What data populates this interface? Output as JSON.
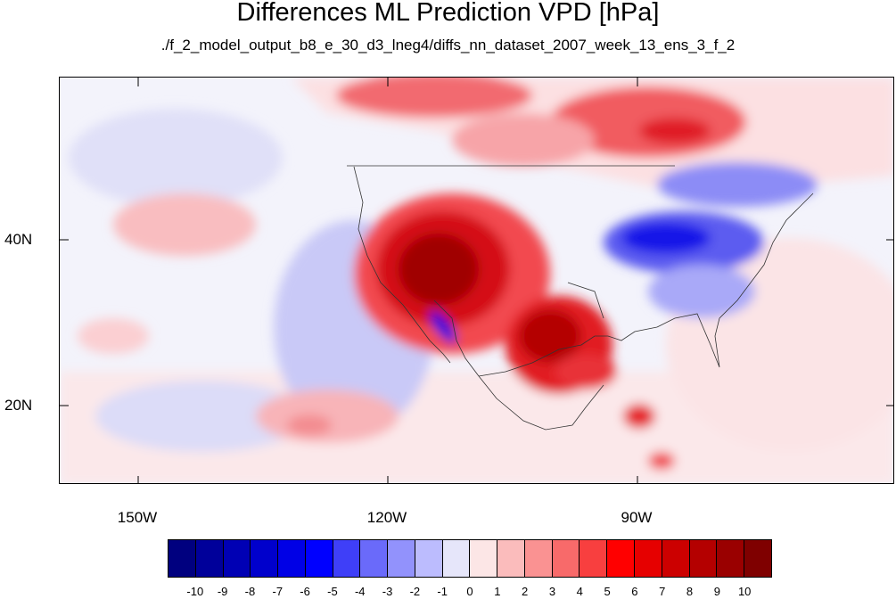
{
  "title": "Differences ML Prediction VPD [hPa]",
  "subtitle": "./f_2_model_output_b8_e_30_d3_lneg4/diffs_nn_dataset_2007_week_13_ens_3_f_2",
  "map": {
    "lat_labels": [
      "40N",
      "20N"
    ],
    "lon_labels": [
      "150W",
      "120W",
      "90W"
    ],
    "extent": {
      "lon_min": -160,
      "lon_max": -60,
      "lat_min": 10,
      "lat_max": 59
    }
  },
  "colorbar": {
    "labels": [
      "-10",
      "-9",
      "-8",
      "-7",
      "-6",
      "-5",
      "-4",
      "-3",
      "-2",
      "-1",
      "0",
      "1",
      "2",
      "3",
      "4",
      "5",
      "6",
      "7",
      "8",
      "9",
      "10"
    ],
    "colors": [
      "#00007f",
      "#00009a",
      "#0000b4",
      "#0000cc",
      "#0000e6",
      "#0000ff",
      "#3f3ff8",
      "#6a6afa",
      "#9292fc",
      "#bcbcfe",
      "#e6e6fa",
      "#fce6e6",
      "#fbbcbc",
      "#fa9292",
      "#f86a6a",
      "#f83f3f",
      "#ff0000",
      "#e60000",
      "#cc0000",
      "#b40000",
      "#9a0000",
      "#7f0000"
    ]
  }
}
